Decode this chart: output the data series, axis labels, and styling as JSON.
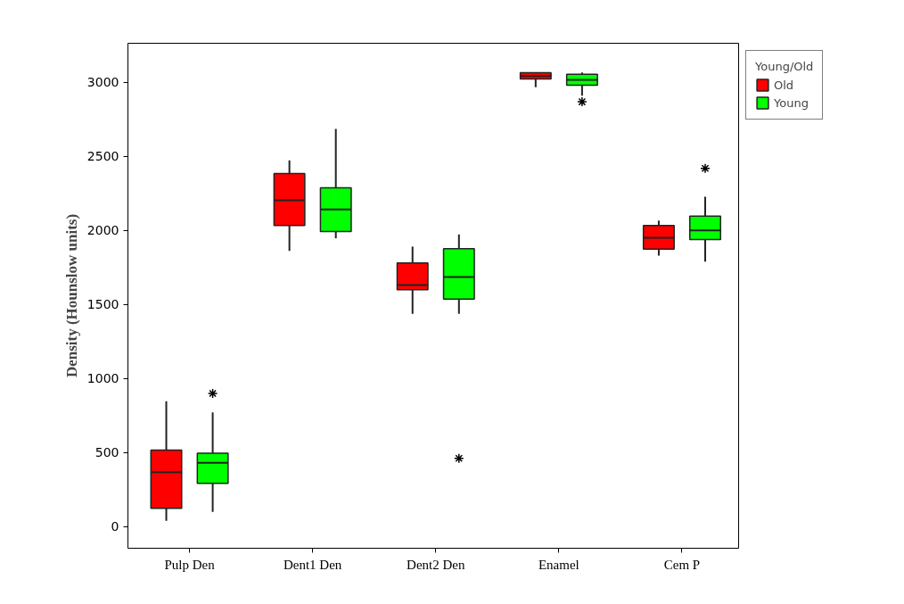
{
  "chart_data": {
    "type": "box",
    "ylabel": "Density (Hounslow units)",
    "legend_title": "Young/Old",
    "legend": "top right",
    "grid": false,
    "marker": "cross",
    "categories": [
      "Pulp Den",
      "Dent1 Den",
      "Dent2 Den",
      "Enamel",
      "Cem P"
    ],
    "ylim": [
      -145,
      3265
    ],
    "yticks": [
      0,
      500,
      1000,
      1500,
      2000,
      2500,
      3000
    ],
    "series": [
      {
        "name": "Old",
        "color": "#ff0000",
        "boxes": [
          {
            "low": 40,
            "q1": 125,
            "median": 369,
            "q3": 518,
            "high": 847
          },
          {
            "low": 1863,
            "q1": 2034,
            "median": 2205,
            "q3": 2386,
            "high": 2474
          },
          {
            "low": 1438,
            "q1": 1600,
            "median": 1633,
            "q3": 1781,
            "high": 1892
          },
          {
            "low": 2968,
            "q1": 3024,
            "median": 3044,
            "q3": 3066,
            "high": 3066
          },
          {
            "low": 1831,
            "q1": 1875,
            "median": 1952,
            "q3": 2034,
            "high": 2068
          }
        ]
      },
      {
        "name": "Young",
        "color": "#00ff00",
        "boxes": [
          {
            "low": 100,
            "q1": 293,
            "median": 432,
            "q3": 496,
            "high": 773,
            "outliers": [
              900
            ]
          },
          {
            "low": 1948,
            "q1": 1994,
            "median": 2143,
            "q3": 2289,
            "high": 2687
          },
          {
            "low": 1438,
            "q1": 1538,
            "median": 1687,
            "q3": 1878,
            "high": 1974,
            "outliers": [
              462
            ]
          },
          {
            "low": 2911,
            "q1": 2982,
            "median": 3018,
            "q3": 3056,
            "high": 3068,
            "outliers": [
              2870
            ]
          },
          {
            "low": 1791,
            "q1": 1940,
            "median": 2002,
            "q3": 2098,
            "high": 2229,
            "outliers": [
              2420
            ]
          }
        ]
      }
    ]
  }
}
